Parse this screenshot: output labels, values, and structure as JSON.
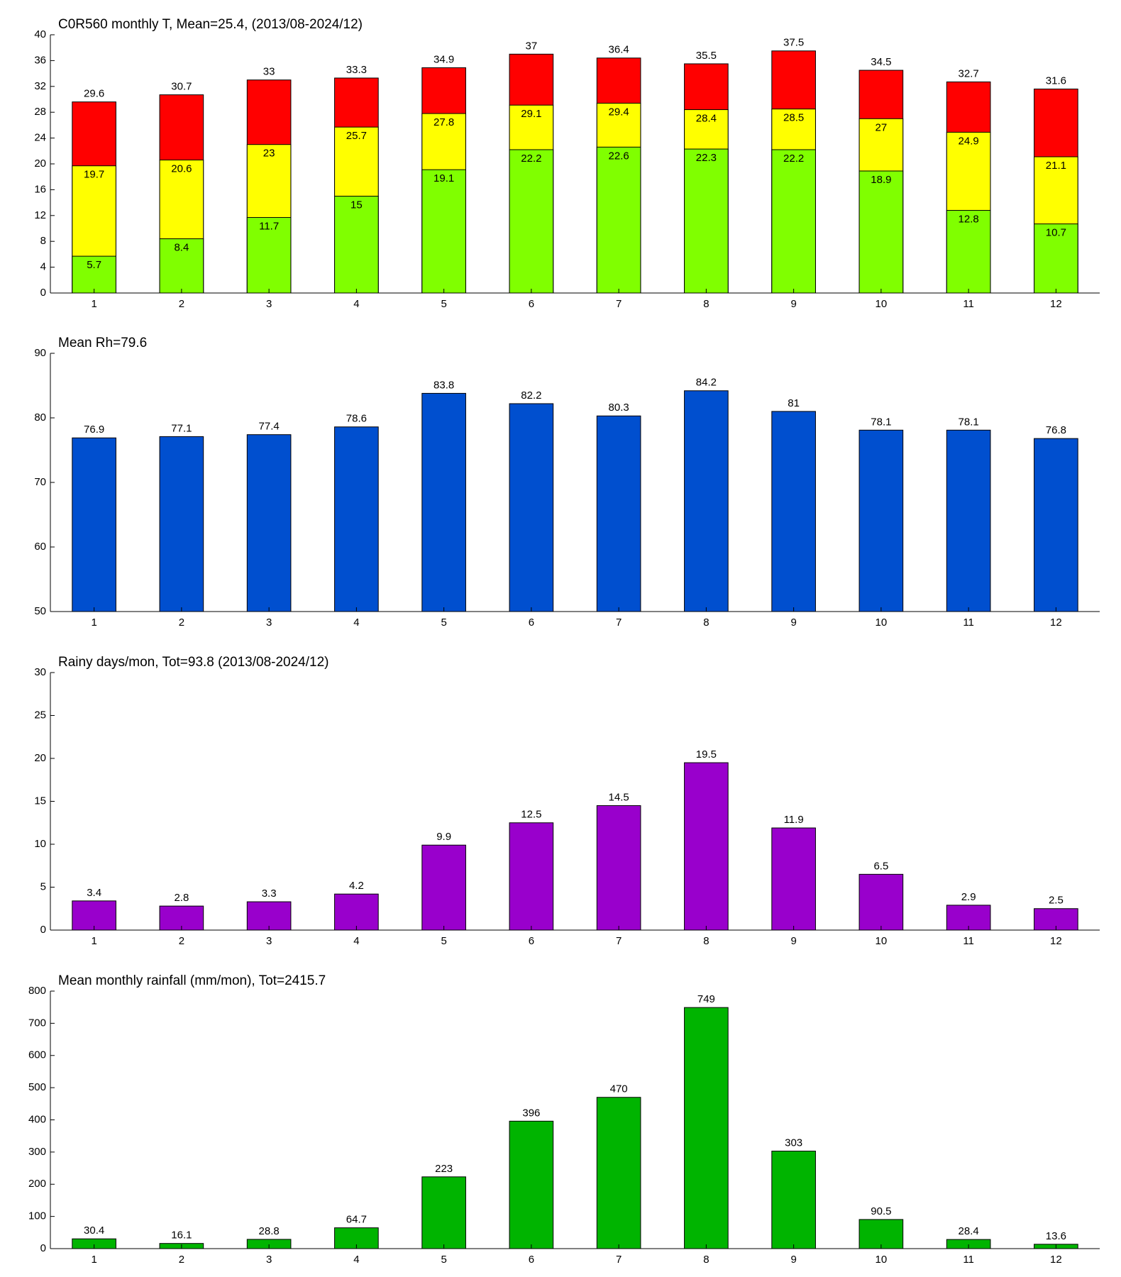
{
  "chart_data": [
    {
      "type": "bar",
      "title": "C0R560 monthly T, Mean=25.4, (2013/08-2024/12)",
      "barmode": "overlay",
      "categories": [
        "1",
        "2",
        "3",
        "4",
        "5",
        "6",
        "7",
        "8",
        "9",
        "10",
        "11",
        "12"
      ],
      "series": [
        {
          "color": "#ff0000",
          "values": [
            29.6,
            30.7,
            33,
            33.3,
            34.9,
            37,
            36.4,
            35.5,
            37.5,
            34.5,
            32.7,
            31.6
          ]
        },
        {
          "color": "#ffff00",
          "values": [
            19.7,
            20.6,
            23,
            25.7,
            27.8,
            29.1,
            29.4,
            28.4,
            28.5,
            27,
            24.9,
            21.1
          ]
        },
        {
          "color": "#80ff00",
          "values": [
            5.7,
            8.4,
            11.7,
            15,
            19.1,
            22.2,
            22.6,
            22.3,
            22.2,
            18.9,
            12.8,
            10.7
          ]
        }
      ],
      "ylim": [
        0,
        40
      ],
      "yticks": [
        0,
        4,
        8,
        12,
        16,
        20,
        24,
        28,
        32,
        36,
        40
      ]
    },
    {
      "type": "bar",
      "title": "Mean Rh=79.6",
      "categories": [
        "1",
        "2",
        "3",
        "4",
        "5",
        "6",
        "7",
        "8",
        "9",
        "10",
        "11",
        "12"
      ],
      "series": [
        {
          "color": "#004fcf",
          "values": [
            76.9,
            77.1,
            77.4,
            78.6,
            83.8,
            82.2,
            80.3,
            84.2,
            81,
            78.1,
            78.1,
            76.8
          ]
        }
      ],
      "ylim": [
        50,
        90
      ],
      "yticks": [
        50,
        60,
        70,
        80,
        90
      ]
    },
    {
      "type": "bar",
      "title": "Rainy days/mon, Tot=93.8 (2013/08-2024/12)",
      "categories": [
        "1",
        "2",
        "3",
        "4",
        "5",
        "6",
        "7",
        "8",
        "9",
        "10",
        "11",
        "12"
      ],
      "series": [
        {
          "color": "#9900cc",
          "values": [
            3.4,
            2.8,
            3.3,
            4.2,
            9.9,
            12.5,
            14.5,
            19.5,
            11.9,
            6.5,
            2.9,
            2.5
          ]
        }
      ],
      "ylim": [
        0,
        30
      ],
      "yticks": [
        0,
        5,
        10,
        15,
        20,
        25,
        30
      ]
    },
    {
      "type": "bar",
      "title": "Mean monthly rainfall (mm/mon), Tot=2415.7",
      "categories": [
        "1",
        "2",
        "3",
        "4",
        "5",
        "6",
        "7",
        "8",
        "9",
        "10",
        "11",
        "12"
      ],
      "series": [
        {
          "color": "#00b400",
          "values": [
            30.4,
            16.1,
            28.8,
            64.7,
            223,
            396,
            470,
            749,
            303,
            90.5,
            28.4,
            13.6
          ]
        }
      ],
      "ylim": [
        0,
        800
      ],
      "yticks": [
        0,
        100,
        200,
        300,
        400,
        500,
        600,
        700,
        800
      ]
    }
  ]
}
